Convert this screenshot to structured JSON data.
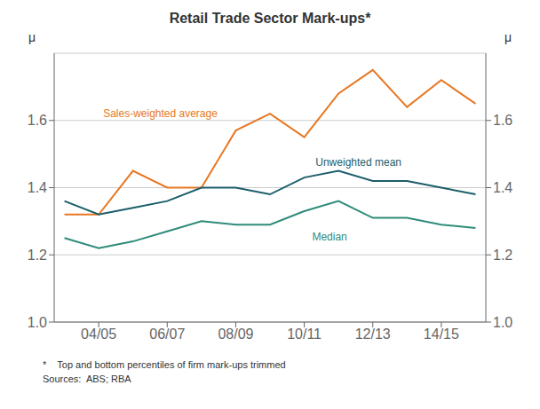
{
  "chart_data": {
    "type": "line",
    "title": "Retail Trade Sector Mark-ups*",
    "x": [
      0,
      1,
      2,
      3,
      4,
      5,
      6,
      7,
      8,
      9,
      10,
      11,
      12
    ],
    "xlim": [
      -0.3,
      12.3
    ],
    "xticks": [
      {
        "value": 1,
        "label": "04/05"
      },
      {
        "value": 3,
        "label": "06/07"
      },
      {
        "value": 5,
        "label": "08/09"
      },
      {
        "value": 7,
        "label": "10/11"
      },
      {
        "value": 9,
        "label": "12/13"
      },
      {
        "value": 11,
        "label": "14/15"
      }
    ],
    "ylim": [
      1.0,
      1.8
    ],
    "yticks": [
      {
        "value": 1.0,
        "label": "1.0"
      },
      1.2,
      1.4,
      1.6
    ],
    "y2lim": [
      1.0,
      1.8
    ],
    "y2ticks": [
      {
        "value": 1.0,
        "label": "1.0"
      },
      1.2,
      1.4,
      1.6
    ],
    "y_label": "μ",
    "y2_label": "μ",
    "grid": "y",
    "series": [
      {
        "name": "Sales-weighted average",
        "color": "#E87722",
        "values": [
          1.32,
          1.32,
          1.45,
          1.4,
          1.4,
          1.57,
          1.62,
          1.55,
          1.68,
          1.75,
          1.64,
          1.72,
          1.65
        ]
      },
      {
        "name": "Unweighted mean",
        "color": "#1B5E6B",
        "values": [
          1.36,
          1.32,
          1.34,
          1.36,
          1.4,
          1.4,
          1.38,
          1.43,
          1.45,
          1.42,
          1.42,
          1.4,
          1.38
        ]
      },
      {
        "name": "Median",
        "color": "#2E8B7A",
        "values": [
          1.25,
          1.22,
          1.24,
          1.27,
          1.3,
          1.29,
          1.29,
          1.33,
          1.36,
          1.31,
          1.31,
          1.29,
          1.28
        ]
      }
    ],
    "annotations": [
      {
        "text": "Sales-weighted average",
        "x": 1.0,
        "y": 1.62,
        "color": "#E87722"
      },
      {
        "text": "Unweighted mean",
        "x": 7.2,
        "y": 1.475,
        "color": "#1B5E6B"
      },
      {
        "text": "Median",
        "x": 7.1,
        "y": 1.255,
        "color": "#2E8B7A"
      }
    ],
    "footnotes": [
      "*    Top and bottom percentiles of firm mark-ups trimmed",
      "Sources:  ABS; RBA"
    ]
  }
}
